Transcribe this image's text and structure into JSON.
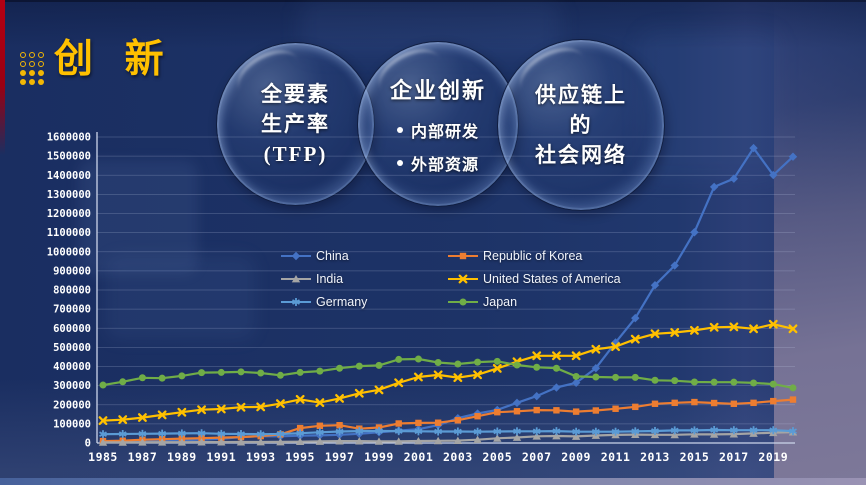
{
  "header": {
    "title": "创 新"
  },
  "bubbles": [
    {
      "lines": [
        "全要素",
        "生产率",
        "(TFP)"
      ]
    },
    {
      "heading": "企业创新",
      "bullets": [
        "内部研发",
        "外部资源"
      ]
    },
    {
      "lines": [
        "供应链上",
        "的",
        "社会网络"
      ]
    }
  ],
  "colors": {
    "accent_red": "#B00014",
    "title_gold": "#FFC000",
    "slide_navy": "#1D3367",
    "right_purple": "#7D7899",
    "bottom_bar_blue": "#7D85AB"
  },
  "chart_data": {
    "type": "line",
    "title": "",
    "xlabel": "",
    "ylabel": "",
    "ylim": [
      0,
      1600000
    ],
    "grid": true,
    "legend_position": "upper-center-two-column",
    "x_years": [
      1985,
      1986,
      1987,
      1988,
      1989,
      1990,
      1991,
      1992,
      1993,
      1994,
      1995,
      1996,
      1997,
      1998,
      1999,
      2000,
      2001,
      2002,
      2003,
      2004,
      2005,
      2006,
      2007,
      2008,
      2009,
      2010,
      2011,
      2012,
      2013,
      2014,
      2015,
      2016,
      2017,
      2018,
      2019,
      2020
    ],
    "x_tick_labels": [
      "1985",
      "1987",
      "1989",
      "1991",
      "1993",
      "1995",
      "1997",
      "1999",
      "2001",
      "2003",
      "2005",
      "2007",
      "2009",
      "2011",
      "2013",
      "2015",
      "2017",
      "2019"
    ],
    "y_ticks": [
      0,
      100000,
      200000,
      300000,
      400000,
      500000,
      600000,
      700000,
      800000,
      900000,
      1000000,
      1100000,
      1200000,
      1300000,
      1400000,
      1500000,
      1600000
    ],
    "y_tick_labels": [
      "0",
      "100000",
      "200000",
      "300000",
      "400000",
      "500000",
      "600000",
      "700000",
      "800000",
      "900000",
      "1000000",
      "1100000",
      "1200000",
      "1300000",
      "1400000",
      "1500000",
      "1600000"
    ],
    "series": [
      {
        "name": "China",
        "color": "#4472C4",
        "marker": "diamond",
        "values": [
          9000,
          11000,
          13000,
          14000,
          15000,
          18000,
          22000,
          31000,
          36000,
          35000,
          38000,
          40000,
          43000,
          48000,
          56000,
          65000,
          72000,
          93000,
          130000,
          154000,
          173000,
          210000,
          245000,
          290000,
          315000,
          391000,
          526000,
          653000,
          825000,
          928000,
          1102000,
          1339000,
          1382000,
          1542000,
          1401000,
          1497000
        ]
      },
      {
        "name": "Republic of Korea",
        "color": "#ED7D31",
        "marker": "square",
        "values": [
          10000,
          12000,
          17000,
          20000,
          23000,
          25000,
          28000,
          31000,
          36000,
          45000,
          78000,
          90000,
          93000,
          75000,
          81000,
          102000,
          105000,
          106000,
          119000,
          140000,
          161000,
          166000,
          172000,
          171000,
          164000,
          170000,
          179000,
          189000,
          205000,
          210000,
          214000,
          209000,
          205000,
          210000,
          219000,
          227000
        ]
      },
      {
        "name": "India",
        "color": "#A5A5A5",
        "marker": "triangle",
        "values": [
          3500,
          3700,
          3900,
          4000,
          4200,
          4500,
          4800,
          5000,
          5300,
          5500,
          7000,
          8300,
          10000,
          10100,
          8500,
          8500,
          10600,
          11500,
          12600,
          17500,
          24500,
          28900,
          35200,
          36800,
          34300,
          39400,
          42300,
          43700,
          43000,
          42900,
          45700,
          45100,
          46600,
          50100,
          53600,
          56800
        ]
      },
      {
        "name": "United States of America",
        "color": "#FFC000",
        "marker": "x",
        "values": [
          117000,
          122000,
          133000,
          147000,
          161000,
          174000,
          178000,
          187000,
          189000,
          206000,
          228000,
          211000,
          233000,
          260000,
          278000,
          315000,
          345000,
          356000,
          342000,
          357000,
          390000,
          425000,
          456000,
          456000,
          456000,
          490000,
          504000,
          543000,
          571000,
          578000,
          589000,
          605000,
          607000,
          597000,
          621000,
          597000
        ]
      },
      {
        "name": "Germany",
        "color": "#5B9BD5",
        "marker": "asterisk",
        "values": [
          46000,
          47000,
          48000,
          49000,
          50000,
          51000,
          48000,
          47000,
          46000,
          47000,
          51000,
          56000,
          60000,
          62000,
          63000,
          62000,
          61000,
          60000,
          60000,
          59000,
          60000,
          61000,
          61000,
          62000,
          59000,
          59000,
          59000,
          61000,
          63000,
          66000,
          66000,
          68000,
          67000,
          67000,
          67000,
          62000
        ]
      },
      {
        "name": "Japan",
        "color": "#70AD47",
        "marker": "circle",
        "values": [
          303000,
          320000,
          341000,
          339000,
          351000,
          368000,
          369000,
          372000,
          366000,
          354000,
          369000,
          376000,
          391000,
          402000,
          406000,
          437000,
          439000,
          421000,
          413000,
          423000,
          427000,
          408000,
          396000,
          391000,
          348000,
          345000,
          343000,
          343000,
          328000,
          326000,
          319000,
          318000,
          318000,
          314000,
          308000,
          288000
        ]
      }
    ]
  }
}
